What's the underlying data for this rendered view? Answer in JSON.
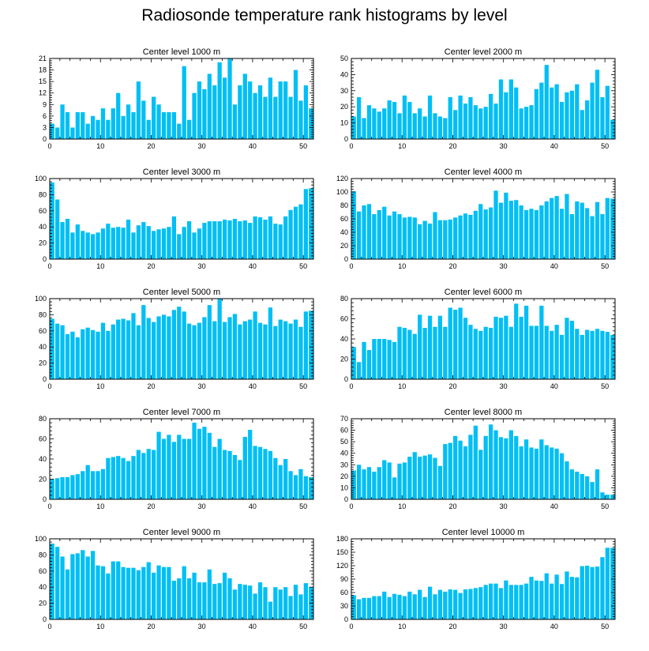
{
  "title": "Radiosonde temperature rank histograms by level",
  "chart_data": [
    {
      "type": "bar",
      "title": "Center level 1000 m",
      "x_ticks": [
        0,
        10,
        20,
        30,
        40,
        50
      ],
      "xlim": [
        0,
        52
      ],
      "ylim": [
        0,
        21
      ],
      "y_ticks": [
        0,
        3,
        6,
        9,
        12,
        15,
        18,
        21
      ],
      "values": [
        4,
        3,
        9,
        7,
        3,
        7,
        7,
        4,
        6,
        5,
        8,
        5,
        8,
        12,
        6,
        9,
        7,
        15,
        10,
        5,
        11,
        9,
        7,
        7,
        7,
        4,
        19,
        5,
        12,
        15,
        13,
        17,
        14,
        20,
        16,
        21,
        9,
        14,
        17,
        15,
        12,
        14,
        11,
        16,
        11,
        15,
        15,
        11,
        18,
        10,
        14,
        8
      ]
    },
    {
      "type": "bar",
      "title": "Center level 2000 m",
      "x_ticks": [
        0,
        10,
        20,
        30,
        40,
        50
      ],
      "xlim": [
        0,
        52
      ],
      "ylim": [
        0,
        50
      ],
      "y_ticks": [
        0,
        10,
        20,
        30,
        40,
        50
      ],
      "values": [
        14,
        26,
        13,
        21,
        19,
        17,
        19,
        24,
        23,
        16,
        27,
        23,
        16,
        19,
        14,
        27,
        16,
        14,
        13,
        26,
        18,
        27,
        22,
        26,
        21,
        19,
        20,
        28,
        22,
        37,
        29,
        37,
        32,
        19,
        20,
        21,
        31,
        35,
        46,
        32,
        34,
        23,
        29,
        30,
        34,
        18,
        24,
        35,
        43,
        26,
        33,
        12
      ]
    },
    {
      "type": "bar",
      "title": "Center level 3000 m",
      "x_ticks": [
        0,
        10,
        20,
        30,
        40,
        50
      ],
      "xlim": [
        0,
        52
      ],
      "ylim": [
        0,
        100
      ],
      "y_ticks": [
        0,
        20,
        40,
        60,
        80,
        100
      ],
      "values": [
        95,
        74,
        46,
        50,
        33,
        43,
        35,
        33,
        31,
        33,
        38,
        44,
        39,
        40,
        39,
        49,
        33,
        42,
        46,
        41,
        35,
        37,
        38,
        40,
        53,
        31,
        40,
        47,
        33,
        38,
        45,
        47,
        47,
        47,
        49,
        48,
        50,
        47,
        48,
        45,
        53,
        52,
        49,
        53,
        44,
        43,
        53,
        61,
        65,
        68,
        87,
        88
      ]
    },
    {
      "type": "bar",
      "title": "Center level 4000 m",
      "x_ticks": [
        0,
        10,
        20,
        30,
        40,
        50
      ],
      "xlim": [
        0,
        52
      ],
      "ylim": [
        0,
        120
      ],
      "y_ticks": [
        0,
        20,
        40,
        60,
        80,
        100,
        120
      ],
      "values": [
        101,
        71,
        80,
        82,
        67,
        73,
        78,
        65,
        71,
        67,
        62,
        63,
        62,
        52,
        57,
        53,
        70,
        58,
        58,
        59,
        62,
        65,
        68,
        66,
        72,
        82,
        74,
        77,
        102,
        84,
        99,
        87,
        88,
        80,
        73,
        75,
        73,
        80,
        86,
        91,
        94,
        75,
        97,
        67,
        86,
        84,
        76,
        64,
        85,
        67,
        91,
        90
      ]
    },
    {
      "type": "bar",
      "title": "Center level 5000 m",
      "x_ticks": [
        0,
        10,
        20,
        30,
        40,
        50
      ],
      "xlim": [
        0,
        52
      ],
      "ylim": [
        0,
        100
      ],
      "y_ticks": [
        0,
        20,
        40,
        60,
        80,
        100
      ],
      "values": [
        75,
        69,
        67,
        56,
        59,
        52,
        62,
        64,
        61,
        59,
        70,
        60,
        68,
        74,
        75,
        73,
        82,
        67,
        92,
        76,
        71,
        78,
        80,
        78,
        86,
        90,
        84,
        69,
        67,
        70,
        77,
        92,
        72,
        100,
        71,
        77,
        81,
        68,
        72,
        74,
        84,
        70,
        68,
        89,
        66,
        74,
        72,
        69,
        74,
        65,
        84,
        85
      ]
    },
    {
      "type": "bar",
      "title": "Center level 6000 m",
      "x_ticks": [
        0,
        10,
        20,
        30,
        40,
        50
      ],
      "xlim": [
        0,
        52
      ],
      "ylim": [
        0,
        80
      ],
      "y_ticks": [
        0,
        20,
        40,
        60,
        80
      ],
      "values": [
        32,
        17,
        37,
        29,
        40,
        40,
        40,
        39,
        37,
        52,
        51,
        49,
        45,
        64,
        51,
        63,
        52,
        63,
        52,
        71,
        69,
        71,
        61,
        54,
        50,
        48,
        52,
        51,
        62,
        61,
        63,
        52,
        75,
        62,
        73,
        53,
        53,
        73,
        53,
        48,
        54,
        44,
        61,
        58,
        50,
        44,
        49,
        48,
        50,
        48,
        47,
        44
      ]
    },
    {
      "type": "bar",
      "title": "Center level 7000 m",
      "x_ticks": [
        0,
        10,
        20,
        30,
        40,
        50
      ],
      "xlim": [
        0,
        52
      ],
      "ylim": [
        0,
        80
      ],
      "y_ticks": [
        0,
        20,
        40,
        60,
        80
      ],
      "values": [
        20,
        21,
        22,
        22,
        24,
        25,
        28,
        34,
        28,
        28,
        30,
        41,
        42,
        43,
        41,
        38,
        43,
        49,
        46,
        50,
        49,
        67,
        60,
        64,
        57,
        64,
        60,
        60,
        76,
        70,
        72,
        66,
        52,
        60,
        49,
        48,
        44,
        39,
        62,
        69,
        53,
        52,
        50,
        48,
        41,
        34,
        40,
        28,
        24,
        30,
        23,
        22
      ]
    },
    {
      "type": "bar",
      "title": "Center level 8000 m",
      "x_ticks": [
        0,
        10,
        20,
        30,
        40,
        50
      ],
      "xlim": [
        0,
        52
      ],
      "ylim": [
        0,
        70
      ],
      "y_ticks": [
        0,
        10,
        20,
        30,
        40,
        50,
        60,
        70
      ],
      "values": [
        25,
        30,
        26,
        28,
        24,
        28,
        34,
        32,
        19,
        31,
        32,
        37,
        41,
        37,
        38,
        39,
        36,
        29,
        48,
        49,
        55,
        51,
        46,
        56,
        64,
        43,
        55,
        65,
        60,
        54,
        53,
        60,
        55,
        46,
        52,
        45,
        44,
        52,
        47,
        45,
        44,
        40,
        33,
        26,
        24,
        22,
        20,
        15,
        26,
        6,
        4,
        4
      ]
    },
    {
      "type": "bar",
      "title": "Center level 9000 m",
      "x_ticks": [
        0,
        10,
        20,
        30,
        40,
        50
      ],
      "xlim": [
        0,
        52
      ],
      "ylim": [
        0,
        100
      ],
      "y_ticks": [
        0,
        20,
        40,
        60,
        80,
        100
      ],
      "values": [
        94,
        90,
        78,
        62,
        81,
        82,
        86,
        78,
        85,
        67,
        66,
        57,
        72,
        72,
        65,
        64,
        64,
        61,
        65,
        71,
        58,
        67,
        65,
        65,
        48,
        51,
        66,
        51,
        58,
        46,
        46,
        62,
        44,
        45,
        58,
        51,
        37,
        44,
        43,
        42,
        32,
        46,
        40,
        22,
        40,
        37,
        40,
        29,
        43,
        31,
        45,
        40
      ]
    },
    {
      "type": "bar",
      "title": "Center level 10000 m",
      "x_ticks": [
        0,
        10,
        20,
        30,
        40,
        50
      ],
      "xlim": [
        0,
        52
      ],
      "ylim": [
        0,
        180
      ],
      "y_ticks": [
        0,
        30,
        60,
        90,
        120,
        150,
        180
      ],
      "values": [
        54,
        45,
        48,
        48,
        52,
        52,
        62,
        50,
        57,
        55,
        52,
        62,
        56,
        66,
        50,
        73,
        56,
        66,
        62,
        67,
        66,
        59,
        67,
        68,
        70,
        72,
        77,
        80,
        80,
        70,
        87,
        77,
        77,
        77,
        80,
        95,
        87,
        86,
        103,
        80,
        100,
        79,
        107,
        95,
        94,
        119,
        120,
        117,
        118,
        139,
        160,
        160
      ]
    }
  ]
}
